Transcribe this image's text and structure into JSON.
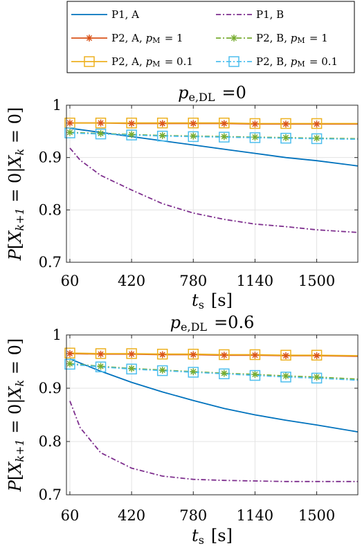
{
  "legend": {
    "entries": [
      {
        "text": "P1, A",
        "color": "#0072BD",
        "dash": "solid",
        "marker": "none"
      },
      {
        "text": "P1, B",
        "color": "#7E2F8E",
        "dash": "dashdot",
        "marker": "none"
      },
      {
        "text": "P2, A, p_M = 1",
        "color": "#D95319",
        "dash": "solid",
        "marker": "star"
      },
      {
        "text": "P2, B, p_M = 1",
        "color": "#77AC30",
        "dash": "dashdot",
        "marker": "star"
      },
      {
        "text": "P2, A, p_M = 0.1",
        "color": "#EDB120",
        "dash": "solid",
        "marker": "square"
      },
      {
        "text": "P2, B, p_M = 0.1",
        "color": "#4DBEEE",
        "dash": "dashdot",
        "marker": "square"
      }
    ]
  },
  "chart_data": [
    {
      "type": "line",
      "title": "p_e,DL =0",
      "xlabel": "t_s [s]",
      "ylabel": "P[X_{k+1} = 0 | X_k = 0]",
      "xlim": [
        40,
        1740
      ],
      "ylim": [
        0.7,
        1.0
      ],
      "xticks": [
        60,
        420,
        780,
        1140,
        1500
      ],
      "yticks": [
        0.7,
        0.8,
        0.9,
        1.0
      ],
      "ytick_labels": [
        "0.7",
        "0.8",
        "0.9",
        "1"
      ],
      "grid": true,
      "series": [
        {
          "name": "P1, A",
          "x": [
            60,
            240,
            420,
            600,
            780,
            960,
            1140,
            1320,
            1500,
            1740
          ],
          "y": [
            0.956,
            0.948,
            0.94,
            0.932,
            0.924,
            0.916,
            0.908,
            0.9,
            0.894,
            0.884
          ]
        },
        {
          "name": "P1, B",
          "x": [
            60,
            120,
            240,
            420,
            600,
            780,
            960,
            1140,
            1320,
            1500,
            1740
          ],
          "y": [
            0.918,
            0.895,
            0.866,
            0.838,
            0.812,
            0.794,
            0.782,
            0.773,
            0.768,
            0.762,
            0.757
          ]
        },
        {
          "name": "P2, A, p_M = 1",
          "x": [
            60,
            240,
            420,
            600,
            780,
            960,
            1140,
            1320,
            1500,
            1740
          ],
          "y": [
            0.966,
            0.966,
            0.965,
            0.965,
            0.965,
            0.965,
            0.964,
            0.964,
            0.964,
            0.964
          ]
        },
        {
          "name": "P2, B, p_M = 1",
          "x": [
            60,
            240,
            420,
            600,
            780,
            960,
            1140,
            1320,
            1500,
            1740
          ],
          "y": [
            0.948,
            0.946,
            0.944,
            0.942,
            0.941,
            0.94,
            0.939,
            0.938,
            0.937,
            0.936
          ]
        },
        {
          "name": "P2, A, p_M = 0.1",
          "x": [
            60,
            240,
            420,
            600,
            780,
            960,
            1140,
            1320,
            1500,
            1740
          ],
          "y": [
            0.966,
            0.966,
            0.966,
            0.966,
            0.966,
            0.966,
            0.965,
            0.965,
            0.965,
            0.965
          ]
        },
        {
          "name": "P2, B, p_M = 0.1",
          "x": [
            60,
            240,
            420,
            600,
            780,
            960,
            1140,
            1320,
            1500,
            1740
          ],
          "y": [
            0.947,
            0.945,
            0.943,
            0.941,
            0.94,
            0.939,
            0.938,
            0.937,
            0.936,
            0.935
          ]
        }
      ]
    },
    {
      "type": "line",
      "title": "p_e,DL =0.6",
      "xlabel": "t_s [s]",
      "ylabel": "P[X_{k+1} = 0 | X_k = 0]",
      "xlim": [
        40,
        1740
      ],
      "ylim": [
        0.7,
        1.0
      ],
      "xticks": [
        60,
        420,
        780,
        1140,
        1500
      ],
      "yticks": [
        0.7,
        0.8,
        0.9,
        1.0
      ],
      "ytick_labels": [
        "0.7",
        "0.8",
        "0.9",
        "1"
      ],
      "grid": true,
      "series": [
        {
          "name": "P1, A",
          "x": [
            60,
            240,
            420,
            600,
            780,
            960,
            1140,
            1320,
            1500,
            1740
          ],
          "y": [
            0.955,
            0.932,
            0.911,
            0.893,
            0.877,
            0.862,
            0.85,
            0.84,
            0.831,
            0.818
          ]
        },
        {
          "name": "P1, B",
          "x": [
            60,
            120,
            240,
            420,
            600,
            780,
            960,
            1140,
            1320,
            1500,
            1740
          ],
          "y": [
            0.876,
            0.826,
            0.779,
            0.75,
            0.735,
            0.729,
            0.727,
            0.726,
            0.725,
            0.725,
            0.725
          ]
        },
        {
          "name": "P2, A, p_M = 1",
          "x": [
            60,
            240,
            420,
            600,
            780,
            960,
            1140,
            1320,
            1500,
            1740
          ],
          "y": [
            0.965,
            0.964,
            0.964,
            0.963,
            0.963,
            0.962,
            0.962,
            0.961,
            0.961,
            0.96
          ]
        },
        {
          "name": "P2, B, p_M = 1",
          "x": [
            60,
            240,
            420,
            600,
            780,
            960,
            1140,
            1320,
            1500,
            1740
          ],
          "y": [
            0.946,
            0.941,
            0.937,
            0.934,
            0.931,
            0.928,
            0.926,
            0.923,
            0.921,
            0.917
          ]
        },
        {
          "name": "P2, A, p_M = 0.1",
          "x": [
            60,
            240,
            420,
            600,
            780,
            960,
            1140,
            1320,
            1500,
            1740
          ],
          "y": [
            0.966,
            0.965,
            0.965,
            0.964,
            0.964,
            0.963,
            0.963,
            0.962,
            0.962,
            0.961
          ]
        },
        {
          "name": "P2, B, p_M = 0.1",
          "x": [
            60,
            240,
            420,
            600,
            780,
            960,
            1140,
            1320,
            1500,
            1740
          ],
          "y": [
            0.945,
            0.94,
            0.936,
            0.933,
            0.93,
            0.927,
            0.924,
            0.921,
            0.919,
            0.915
          ]
        }
      ]
    }
  ]
}
